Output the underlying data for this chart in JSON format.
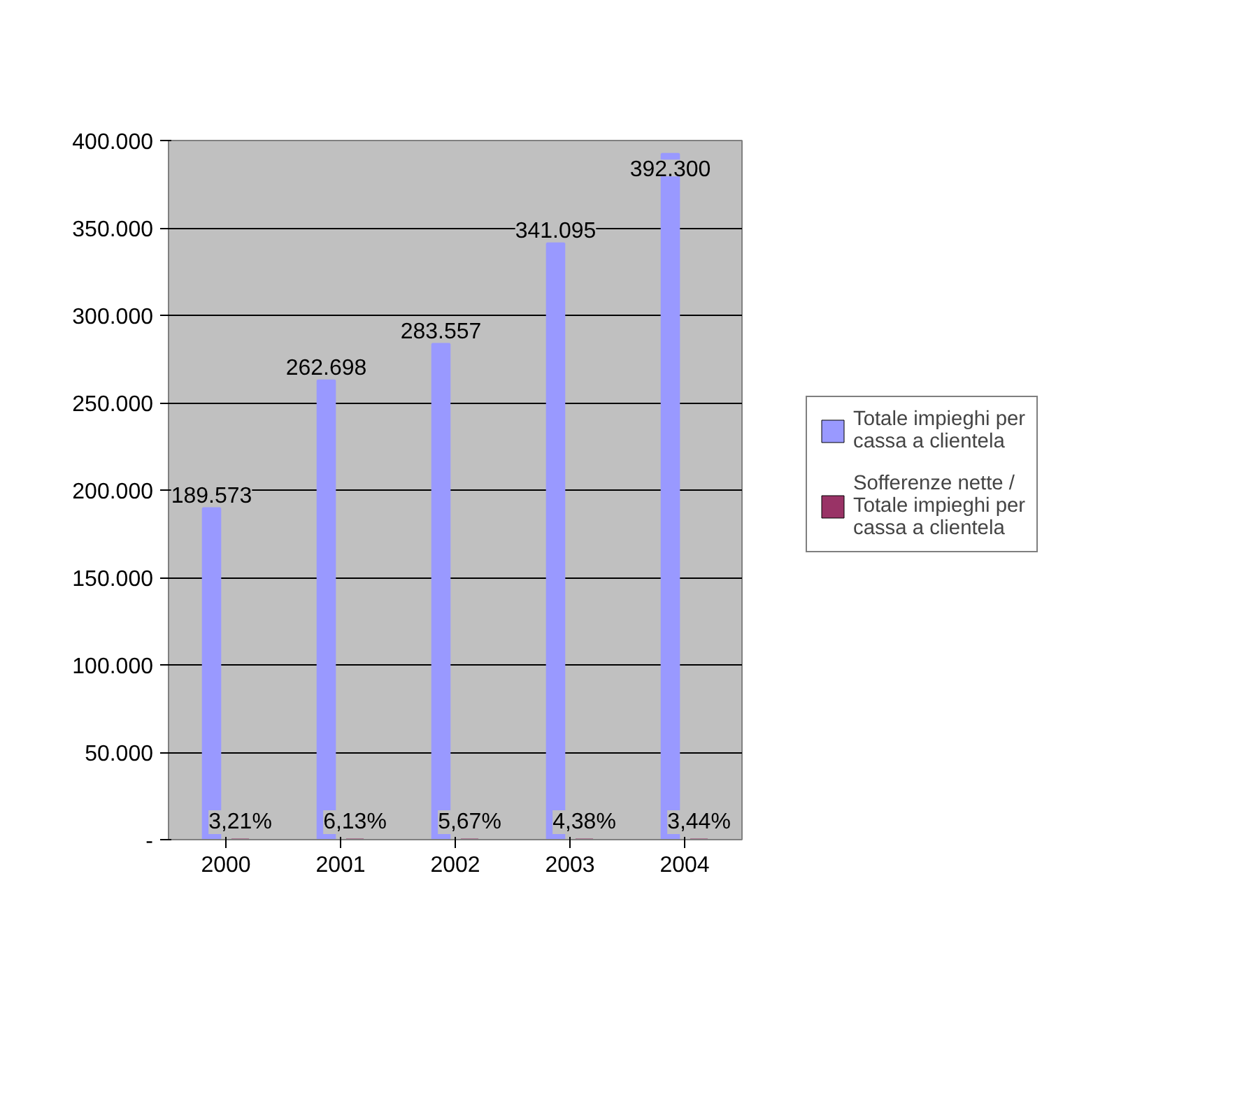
{
  "chart_data": {
    "type": "bar",
    "categories": [
      "2000",
      "2001",
      "2002",
      "2003",
      "2004"
    ],
    "series": [
      {
        "name": "Totale impieghi per cassa a clientela",
        "color": "#9999ff",
        "values": [
          189573,
          262698,
          283557,
          341095,
          392300
        ],
        "value_labels": [
          "189.573",
          "262.698",
          "283.557",
          "341.095",
          "392.300"
        ]
      },
      {
        "name": "Sofferenze nette / Totale impieghi per cassa a clientela",
        "color": "#993366",
        "values": [
          0.0321,
          0.0613,
          0.0567,
          0.0438,
          0.0344
        ],
        "value_labels": [
          "3,21%",
          "6,13%",
          "5,67%",
          "4,38%",
          "3,44%"
        ]
      }
    ],
    "ylim": [
      0,
      400000
    ],
    "yticks": [
      {
        "value": 0,
        "label": "-"
      },
      {
        "value": 50000,
        "label": "50.000"
      },
      {
        "value": 100000,
        "label": "100.000"
      },
      {
        "value": 150000,
        "label": "150.000"
      },
      {
        "value": 200000,
        "label": "200.000"
      },
      {
        "value": 250000,
        "label": "250.000"
      },
      {
        "value": 300000,
        "label": "300.000"
      },
      {
        "value": 350000,
        "label": "350.000"
      },
      {
        "value": 400000,
        "label": "400.000"
      }
    ],
    "grid": "y",
    "legend": "right"
  }
}
